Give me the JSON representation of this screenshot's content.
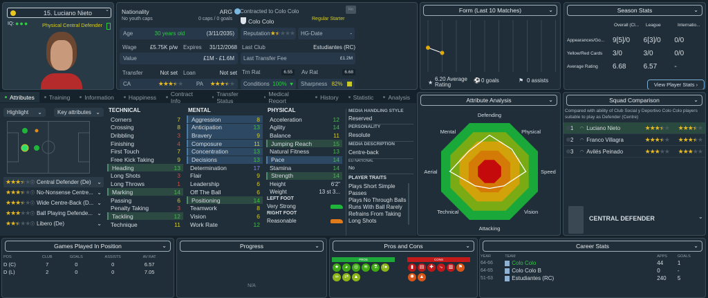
{
  "player": {
    "name": "15. Luciano Nieto",
    "iq_label": "IQ:",
    "role_desc": "Physical Central Defender"
  },
  "info": {
    "nationality_label": "Nationality",
    "nationality": "ARG",
    "youth_caps": "No youth caps",
    "caps": "0 caps / 0 goals",
    "contract_label": "Contracted to Colo Colo",
    "club": "Colo Colo",
    "squad_status": "Regular Starter",
    "fin_button": "Fin",
    "age_label": "Age",
    "age": "30 years old",
    "dob": "(3/11/2035)",
    "reputation_label": "Reputation",
    "reputation_stars": 1.5,
    "hg_label": "HG-Date",
    "hg_value": "-",
    "wage_label": "Wage",
    "wage": "£5.75K p/w",
    "expires_label": "Expires",
    "expires": "31/12/2068",
    "last_club_label": "Last Club",
    "last_club": "Estudiantes (RC)",
    "value_label": "Value",
    "value": "£1M - £1.6M",
    "last_fee_label": "Last Transfer Fee",
    "last_fee": "£1.2M",
    "transfer_label": "Transfer",
    "transfer": "Not set",
    "loan_label": "Loan",
    "loan": "Not set",
    "trn_label": "Trn Rat",
    "trn": "6.55",
    "av_label": "Av Rat",
    "av": "6.68",
    "ca_label": "CA",
    "ca_stars": 3.5,
    "pa_label": "PA",
    "pa_stars": 3.5,
    "conditions_label": "Conditions",
    "conditions": "100%",
    "sharpness_label": "Sharpness",
    "sharpness": "82%"
  },
  "form": {
    "title": "Form (Last 10 Matches)",
    "ratings": [
      6.4,
      6.1
    ],
    "avg": "6.20 Average Rating",
    "goals": "0 goals",
    "assists": "0 assists"
  },
  "season": {
    "title": "Season Stats",
    "cols": [
      "Overall (Cl...",
      "League",
      "Internatio..."
    ],
    "rows": [
      {
        "label": "Appearances/Go...",
        "vals": [
          "9[5]/0",
          "6[3]/0",
          "0/0"
        ]
      },
      {
        "label": "Yellow/Red Cards",
        "vals": [
          "3/0",
          "3/0",
          "0/0"
        ]
      },
      {
        "label": "Average Rating",
        "vals": [
          "6.68",
          "6.57",
          "-"
        ]
      }
    ],
    "button": "View Player Stats ›"
  },
  "tabs": [
    "Attributes",
    "Training",
    "Information",
    "Happiness",
    "Contract Info",
    "Transfer Status",
    "Medical Report",
    "History",
    "Statistic",
    "Analysis"
  ],
  "highlight": {
    "label": "Highlight",
    "key": "Key attributes"
  },
  "roles": [
    {
      "stars": 3.5,
      "name": "Central Defender (De)"
    },
    {
      "stars": 3.5,
      "name": "No-Nonsense Centre..."
    },
    {
      "stars": 3.5,
      "name": "Wide Centre-Back (D..."
    },
    {
      "stars": 3,
      "name": "Ball Playing Defende..."
    },
    {
      "stars": 2.5,
      "name": "Libero (De)"
    }
  ],
  "technical": {
    "title": "TECHNICAL",
    "items": [
      [
        "Corners",
        7,
        ""
      ],
      [
        "Crossing",
        8,
        ""
      ],
      [
        "Dribbling",
        3,
        ""
      ],
      [
        "Finishing",
        4,
        ""
      ],
      [
        "First Touch",
        7,
        ""
      ],
      [
        "Free Kick Taking",
        9,
        ""
      ],
      [
        "Heading",
        13,
        "g"
      ],
      [
        "Long Shots",
        3,
        ""
      ],
      [
        "Long Throws",
        1,
        ""
      ],
      [
        "Marking",
        14,
        "g"
      ],
      [
        "Passing",
        6,
        ""
      ],
      [
        "Penalty Taking",
        3,
        ""
      ],
      [
        "Tackling",
        12,
        "g"
      ],
      [
        "Technique",
        11,
        ""
      ]
    ]
  },
  "mental": {
    "title": "MENTAL",
    "items": [
      [
        "Aggression",
        8,
        "b"
      ],
      [
        "Anticipation",
        13,
        "b"
      ],
      [
        "Bravery",
        9,
        "b"
      ],
      [
        "Composure",
        11,
        "b"
      ],
      [
        "Concentration",
        13,
        "b"
      ],
      [
        "Decisions",
        13,
        "b"
      ],
      [
        "Determination",
        17,
        ""
      ],
      [
        "Flair",
        9,
        ""
      ],
      [
        "Leadership",
        6,
        ""
      ],
      [
        "Off The Ball",
        6,
        ""
      ],
      [
        "Positioning",
        14,
        "g"
      ],
      [
        "Teamwork",
        8,
        ""
      ],
      [
        "Vision",
        6,
        ""
      ],
      [
        "Work Rate",
        12,
        ""
      ]
    ]
  },
  "physical": {
    "title": "PHYSICAL",
    "items": [
      [
        "Acceleration",
        12,
        ""
      ],
      [
        "Agility",
        14,
        ""
      ],
      [
        "Balance",
        11,
        ""
      ],
      [
        "Jumping Reach",
        15,
        "g"
      ],
      [
        "Natural Fitness",
        13,
        ""
      ],
      [
        "Pace",
        14,
        "b"
      ],
      [
        "Stamina",
        14,
        ""
      ],
      [
        "Strength",
        14,
        "g"
      ]
    ],
    "height_label": "Height",
    "height": "6'2\"",
    "weight_label": "Weight",
    "weight": "13 st 3...",
    "left_foot_label": "LEFT FOOT",
    "left_foot": "Very Strong",
    "right_foot_label": "RIGHT FOOT",
    "right_foot": "Reasonable"
  },
  "media": {
    "style_label": "MEDIA HANDLING STYLE",
    "style": "Reserved",
    "personality_label": "PERSONALITY",
    "personality": "Resolute",
    "desc_label": "MEDIA DESCRIPTION",
    "desc": "Centre-back",
    "eu_label": "EU NATIONAL",
    "eu": "No",
    "traits_label": "PLAYER TRAITS",
    "traits": [
      "Plays Short Simple Passes",
      "Plays No Through Balls",
      "Runs With Ball Rarely",
      "Refrains From Taking Long Shots"
    ]
  },
  "analysis": {
    "title": "Attribute Analysis",
    "axes": [
      "Defending",
      "Physical",
      "Speed",
      "Vision",
      "Attacking",
      "Technical",
      "Aerial",
      "Mental"
    ],
    "values": [
      75,
      65,
      75,
      42,
      35,
      42,
      82,
      60
    ],
    "colors": [
      "#1aa83a",
      "#7bab14",
      "#d1a20a",
      "#d47a06",
      "#c40a0a"
    ]
  },
  "squad": {
    "title": "Squad Comparison",
    "desc": "Compared with ability of Club Social y Deportivo Colo Colo players suitable to play as Defender (Centre)",
    "rows": [
      {
        "rank": "1",
        "name": "Luciano Nieto",
        "ca": 3.5,
        "pa": 3.5
      },
      {
        "rank": "2",
        "name": "Franco Villagra",
        "ca": 3.5,
        "pa": 3.5
      },
      {
        "rank": "3",
        "name": "Avilés Peinado",
        "ca": 3,
        "pa": 3
      }
    ],
    "position": "CENTRAL DEFENDER"
  },
  "games": {
    "title": "Games Played In Position",
    "cols": [
      "POS",
      "CLUB",
      "GOALS",
      "ASSISTS",
      "AV RAT"
    ],
    "rows": [
      [
        "D (C)",
        "7",
        "0",
        "0",
        "6.57"
      ],
      [
        "D (L)",
        "2",
        "0",
        "0",
        "7.05"
      ]
    ]
  },
  "progress": {
    "title": "Progress",
    "value": "N/A"
  },
  "proscons": {
    "title": "Pros and Cons",
    "pros_label": "PROS",
    "cons_label": "CONS",
    "pros": [
      "star",
      "brain",
      "target",
      "spring",
      "flask",
      "ball-alert",
      "link",
      "handshake",
      "cone"
    ],
    "cons": [
      "card",
      "sheet",
      "medical-cross",
      "route",
      "sheet-alt",
      "flag",
      "burst",
      "cone-alt"
    ]
  },
  "career": {
    "title": "Career Stats",
    "cols": [
      "YEAR",
      "TEAM",
      "APPS",
      "GOALS"
    ],
    "rows": [
      [
        "64-66",
        "Colo Colo",
        "44",
        "1"
      ],
      [
        "64-65",
        "Colo Colo B",
        "0",
        "-"
      ],
      [
        "51-63",
        "Estudiantes (RC)",
        "240",
        "5"
      ]
    ]
  }
}
